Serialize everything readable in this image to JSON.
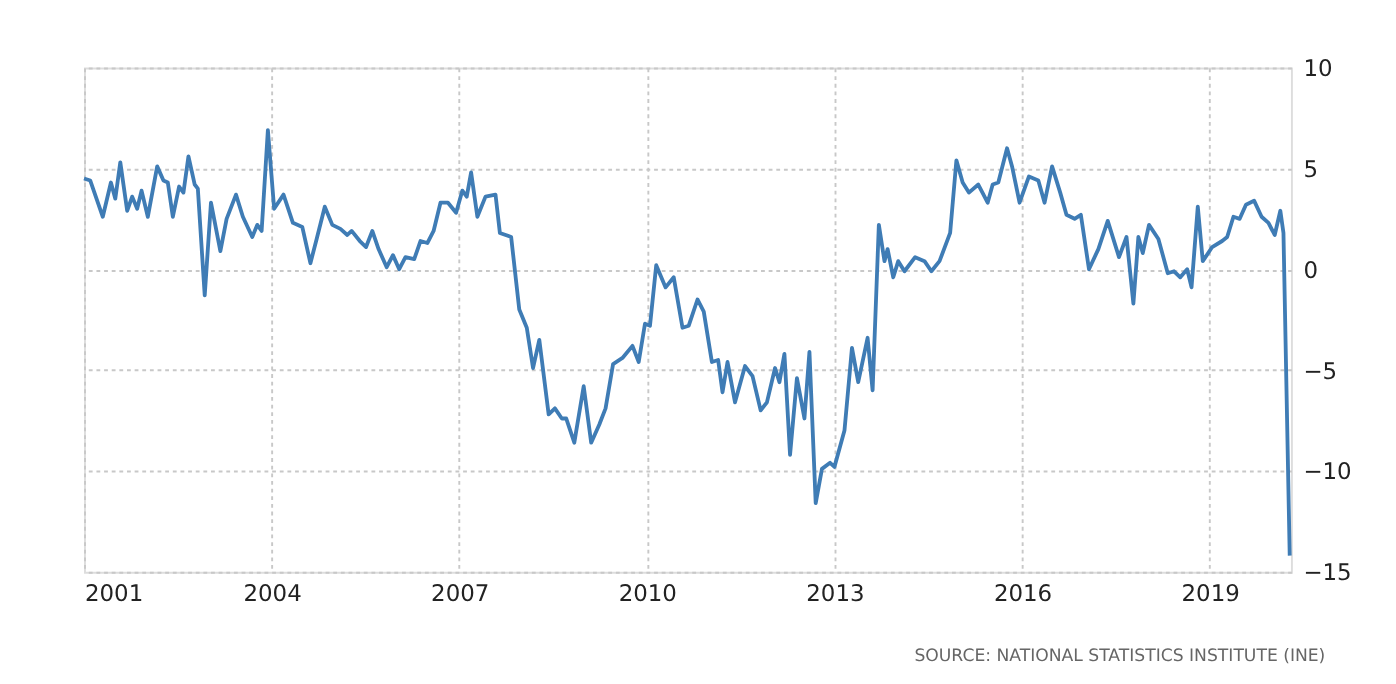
{
  "chart_data": {
    "type": "line",
    "x": [
      2001.0,
      2001.1,
      2001.3,
      2001.43,
      2001.5,
      2001.58,
      2001.69,
      2001.77,
      2001.85,
      2001.92,
      2002.02,
      2002.17,
      2002.27,
      2002.34,
      2002.42,
      2002.52,
      2002.59,
      2002.67,
      2002.77,
      2002.82,
      2002.93,
      2003.03,
      2003.18,
      2003.28,
      2003.43,
      2003.54,
      2003.69,
      2003.77,
      2003.84,
      2003.94,
      2004.04,
      2004.19,
      2004.34,
      2004.49,
      2004.62,
      2004.72,
      2004.85,
      2004.97,
      2005.1,
      2005.21,
      2005.28,
      2005.41,
      2005.51,
      2005.61,
      2005.71,
      2005.84,
      2005.94,
      2006.04,
      2006.14,
      2006.28,
      2006.38,
      2006.49,
      2006.59,
      2006.7,
      2006.82,
      2006.95,
      2007.05,
      2007.12,
      2007.19,
      2007.29,
      2007.42,
      2007.58,
      2007.65,
      2007.83,
      2007.96,
      2008.08,
      2008.18,
      2008.28,
      2008.43,
      2008.53,
      2008.64,
      2008.71,
      2008.84,
      2008.99,
      2009.11,
      2009.24,
      2009.34,
      2009.46,
      2009.61,
      2009.77,
      2009.87,
      2009.97,
      2010.05,
      2010.15,
      2010.3,
      2010.43,
      2010.57,
      2010.67,
      2010.81,
      2010.91,
      2011.04,
      2011.14,
      2011.21,
      2011.29,
      2011.41,
      2011.57,
      2011.69,
      2011.82,
      2011.92,
      2012.05,
      2012.12,
      2012.2,
      2012.29,
      2012.4,
      2012.52,
      2012.6,
      2012.7,
      2012.8,
      2012.93,
      2013.0,
      2013.16,
      2013.28,
      2013.38,
      2013.53,
      2013.61,
      2013.71,
      2013.8,
      2013.85,
      2013.94,
      2014.02,
      2014.12,
      2014.29,
      2014.44,
      2014.55,
      2014.68,
      2014.85,
      2014.95,
      2015.05,
      2015.15,
      2015.3,
      2015.45,
      2015.53,
      2015.62,
      2015.76,
      2015.84,
      2015.96,
      2016.11,
      2016.26,
      2016.36,
      2016.48,
      2016.61,
      2016.71,
      2016.84,
      2016.94,
      2017.07,
      2017.22,
      2017.37,
      2017.55,
      2017.67,
      2017.78,
      2017.86,
      2017.93,
      2018.03,
      2018.18,
      2018.33,
      2018.43,
      2018.53,
      2018.64,
      2018.71,
      2018.81,
      2018.89,
      2019.04,
      2019.2,
      2019.28,
      2019.38,
      2019.48,
      2019.58,
      2019.71,
      2019.83,
      2019.94,
      2020.04,
      2020.13,
      2020.18,
      2020.28
    ],
    "series": [
      {
        "color": "#3f7cb5",
        "values": [
          4.5,
          4.4,
          2.6,
          4.3,
          3.5,
          5.3,
          2.9,
          3.6,
          3.0,
          3.9,
          2.6,
          5.1,
          4.4,
          4.3,
          2.6,
          4.1,
          3.8,
          5.6,
          4.2,
          4.0,
          -1.3,
          3.3,
          0.9,
          2.5,
          3.7,
          2.6,
          1.6,
          2.2,
          1.9,
          6.9,
          3.0,
          3.7,
          2.3,
          2.1,
          0.3,
          1.5,
          3.1,
          2.2,
          2.0,
          1.7,
          1.9,
          1.4,
          1.1,
          1.9,
          1.0,
          0.1,
          0.7,
          0.0,
          0.6,
          0.5,
          1.4,
          1.3,
          1.9,
          3.3,
          3.3,
          2.8,
          3.9,
          3.6,
          4.8,
          2.6,
          3.6,
          3.7,
          1.8,
          1.6,
          -2.0,
          -2.9,
          -4.9,
          -3.5,
          -7.2,
          -6.9,
          -7.4,
          -7.4,
          -8.6,
          -5.8,
          -8.6,
          -7.7,
          -6.9,
          -4.7,
          -4.4,
          -3.8,
          -4.6,
          -2.7,
          -2.8,
          0.2,
          -0.9,
          -0.4,
          -2.9,
          -2.8,
          -1.5,
          -2.1,
          -4.6,
          -4.5,
          -6.1,
          -4.6,
          -6.6,
          -4.8,
          -5.3,
          -7.0,
          -6.6,
          -4.9,
          -5.6,
          -4.2,
          -9.2,
          -5.4,
          -7.4,
          -4.1,
          -11.6,
          -9.9,
          -9.6,
          -9.8,
          -8.0,
          -3.9,
          -5.6,
          -3.4,
          -6.0,
          2.2,
          0.4,
          1.0,
          -0.4,
          0.4,
          -0.1,
          0.6,
          0.4,
          -0.1,
          0.4,
          1.8,
          5.4,
          4.3,
          3.8,
          4.2,
          3.3,
          4.2,
          4.3,
          6.0,
          5.1,
          3.3,
          4.6,
          4.4,
          3.3,
          5.1,
          3.8,
          2.7,
          2.5,
          2.7,
          0.0,
          1.0,
          2.4,
          0.6,
          1.6,
          -1.7,
          1.6,
          0.8,
          2.2,
          1.5,
          -0.2,
          -0.1,
          -0.4,
          0.0,
          -0.9,
          3.1,
          0.4,
          1.1,
          1.4,
          1.6,
          2.6,
          2.5,
          3.2,
          3.4,
          2.6,
          2.3,
          1.7,
          2.9,
          1.8,
          -14.2
        ]
      }
    ],
    "xlim": [
      2001,
      2020.3
    ],
    "xticks": [
      2001,
      2004,
      2007,
      2010,
      2013,
      2016,
      2019
    ],
    "ylim": [
      -15,
      10
    ],
    "yticks": [
      -15,
      -10,
      -5,
      0,
      5,
      10
    ],
    "grid": true,
    "line_style": "solid",
    "marker": "none",
    "annotations": [
      "SOURCE: NATIONAL STATISTICS INSTITUTE (INE)"
    ]
  }
}
